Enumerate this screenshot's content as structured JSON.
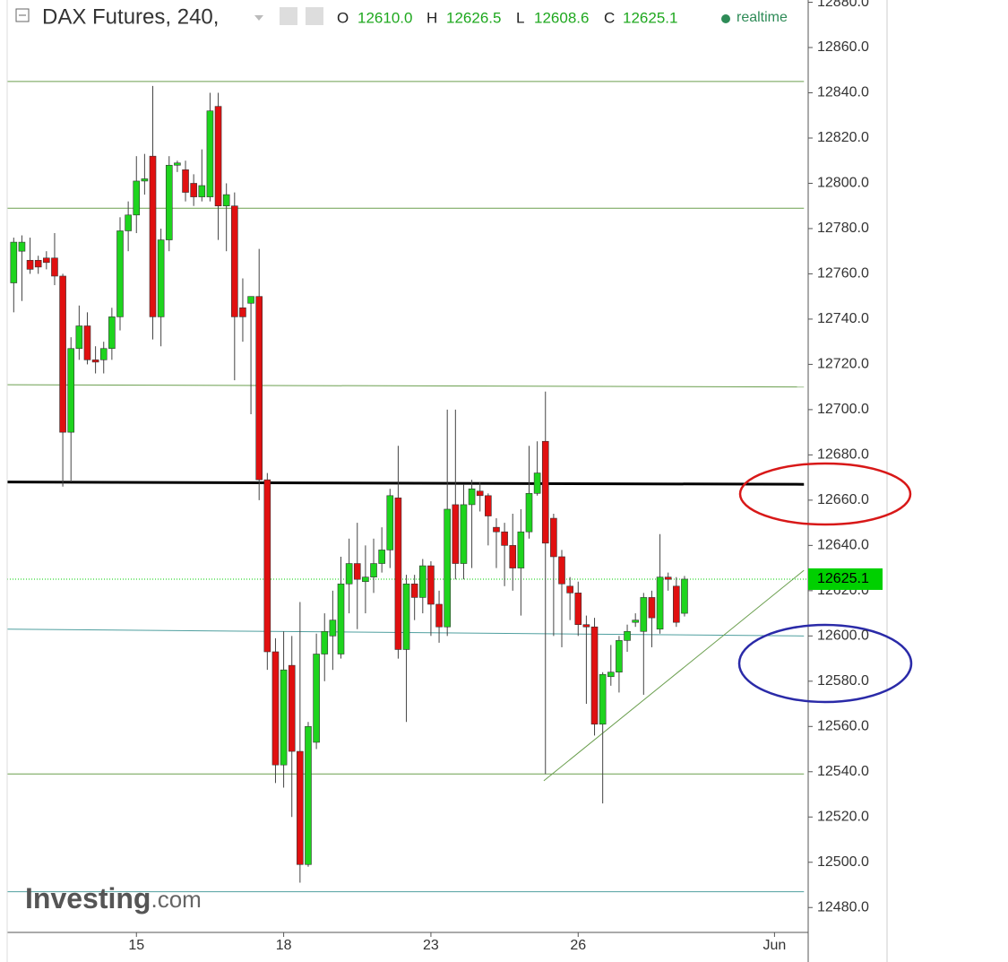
{
  "header": {
    "title": "DAX Futures, 240,",
    "o_label": "O",
    "o": "12610.0",
    "h_label": "H",
    "h": "12626.5",
    "l_label": "L",
    "l": "12608.6",
    "c_label": "C",
    "c": "12625.1",
    "status": "realtime"
  },
  "watermark": {
    "brand": "Investing",
    "suffix": ".com"
  },
  "chart_data": {
    "type": "candlestick",
    "x": [
      0,
      1,
      2,
      3,
      4,
      5,
      6,
      7,
      8,
      9,
      10,
      11,
      12,
      13,
      14,
      15,
      16,
      17,
      18,
      19,
      20,
      21,
      22,
      23,
      24,
      25,
      26,
      27,
      28,
      29,
      30,
      31,
      32,
      33,
      34,
      35,
      36,
      37,
      38,
      39,
      40,
      41,
      42,
      43,
      44,
      45,
      46,
      47,
      48,
      49,
      50,
      51,
      52,
      53,
      54,
      55,
      56,
      57,
      58,
      59,
      60,
      61,
      62,
      63,
      64,
      65,
      66,
      67,
      68,
      69,
      70,
      71,
      72,
      73,
      74,
      75,
      76,
      77,
      78,
      79,
      80,
      81,
      82
    ],
    "open": [
      12756,
      12770,
      12766,
      12766,
      12767,
      12767,
      12759,
      12690,
      12727,
      12737,
      12722,
      12722,
      12727,
      12741,
      12779,
      12786,
      12801,
      12812,
      12741,
      12775,
      12808,
      12806,
      12800,
      12794,
      12794,
      12834,
      12790,
      12790,
      12745,
      12747,
      12750,
      12669,
      12593,
      12543,
      12587,
      12549,
      12499,
      12553,
      12592,
      12600,
      12592,
      12623,
      12632,
      12624,
      12626,
      12632,
      12638,
      12661,
      12594,
      12623,
      12617,
      12631,
      12614,
      12604,
      12658,
      12632,
      12658,
      12664,
      12662,
      12648,
      12646,
      12640,
      12630,
      12646,
      12663,
      12686,
      12652,
      12635,
      12622,
      12619,
      12605,
      12604,
      12561,
      12582,
      12584,
      12598,
      12606,
      12602,
      12617,
      12603,
      12626,
      12622,
      12610
    ],
    "high": [
      12776,
      12777,
      12776,
      12768,
      12770,
      12778,
      12760,
      12732,
      12746,
      12743,
      12728,
      12730,
      12745,
      12785,
      12792,
      12812,
      12813,
      12843,
      12780,
      12812,
      12810,
      12810,
      12804,
      12815,
      12840,
      12840,
      12800,
      12796,
      12758,
      12750,
      12771,
      12672,
      12599,
      12602,
      12600,
      12615,
      12562,
      12601,
      12610,
      12620,
      12635,
      12643,
      12650,
      12640,
      12643,
      12648,
      12665,
      12684,
      12627,
      12627,
      12634,
      12633,
      12620,
      12700,
      12700,
      12667,
      12669,
      12668,
      12663,
      12652,
      12650,
      12654,
      12656,
      12684,
      12686,
      12708,
      12654,
      12638,
      12626,
      12624,
      12609,
      12608,
      12584,
      12596,
      12600,
      12605,
      12610,
      12619,
      12620,
      12645,
      12628,
      12626,
      12626.5
    ],
    "low": [
      12743,
      12748,
      12760,
      12760,
      12762,
      12755,
      12666,
      12668,
      12722,
      12720,
      12716,
      12716,
      12722,
      12735,
      12770,
      12778,
      12795,
      12731,
      12728,
      12770,
      12805,
      12792,
      12790,
      12792,
      12792,
      12775,
      12770,
      12713,
      12730,
      12698,
      12660,
      12585,
      12535,
      12533,
      12520,
      12491,
      12498,
      12550,
      12580,
      12585,
      12590,
      12610,
      12603,
      12610,
      12619,
      12628,
      12630,
      12590,
      12562,
      12607,
      12610,
      12600,
      12597,
      12600,
      12625,
      12625,
      12630,
      12655,
      12640,
      12630,
      12622,
      12620,
      12609,
      12643,
      12662,
      12539,
      12600,
      12595,
      12607,
      12600,
      12570,
      12556,
      12526,
      12578,
      12575,
      12593,
      12604,
      12574,
      12595,
      12601,
      12620,
      12604,
      12608.6
    ],
    "close": [
      12774,
      12774,
      12762,
      12763,
      12765,
      12759,
      12690,
      12727,
      12737,
      12722,
      12721,
      12727,
      12741,
      12779,
      12786,
      12801,
      12802,
      12741,
      12775,
      12808,
      12809,
      12796,
      12794,
      12799,
      12832,
      12790,
      12795,
      12741,
      12741,
      12750,
      12669,
      12593,
      12543,
      12585,
      12549,
      12499,
      12560,
      12592,
      12602,
      12607,
      12623,
      12632,
      12625,
      12626,
      12632,
      12638,
      12662,
      12594,
      12623,
      12617,
      12631,
      12614,
      12604,
      12656,
      12632,
      12658,
      12665,
      12662,
      12653,
      12646,
      12640,
      12630,
      12646,
      12663,
      12672,
      12641,
      12635,
      12623,
      12619,
      12605,
      12604,
      12561,
      12583,
      12584,
      12598,
      12602,
      12607,
      12617,
      12608,
      12626,
      12625,
      12606,
      12625.1
    ],
    "up_color": "#1ed41e",
    "down_color": "#e01010",
    "xlim": [
      -0.8,
      96.9
    ],
    "xticks": [
      {
        "value": 15,
        "label": "15"
      },
      {
        "value": 33,
        "label": "18"
      },
      {
        "value": 51,
        "label": "23"
      },
      {
        "value": 69,
        "label": "26"
      },
      {
        "value": 93,
        "label": "Jun"
      }
    ],
    "ylim": [
      12469,
      12881
    ],
    "yticks": [
      {
        "value": 12480,
        "label": "12480.0"
      },
      {
        "value": 12500,
        "label": "12500.0"
      },
      {
        "value": 12520,
        "label": "12520.0"
      },
      {
        "value": 12540,
        "label": "12540.0"
      },
      {
        "value": 12560,
        "label": "12560.0"
      },
      {
        "value": 12580,
        "label": "12580.0"
      },
      {
        "value": 12600,
        "label": "12600.0"
      },
      {
        "value": 12620,
        "label": "12620.0"
      },
      {
        "value": 12640,
        "label": "12640.0"
      },
      {
        "value": 12660,
        "label": "12660.0"
      },
      {
        "value": 12680,
        "label": "12680.0"
      },
      {
        "value": 12700,
        "label": "12700.0"
      },
      {
        "value": 12720,
        "label": "12720.0"
      },
      {
        "value": 12740,
        "label": "12740.0"
      },
      {
        "value": 12760,
        "label": "12760.0"
      },
      {
        "value": 12780,
        "label": "12780.0"
      },
      {
        "value": 12800,
        "label": "12800.0"
      },
      {
        "value": 12820,
        "label": "12820.0"
      },
      {
        "value": 12840,
        "label": "12840.0"
      },
      {
        "value": 12860,
        "label": "12860.0"
      },
      {
        "value": 12880,
        "label": "12880.0"
      }
    ],
    "last_price": {
      "value": 12625.1,
      "label": "12625.1",
      "color": "#00d000"
    },
    "lines": [
      {
        "x": [
          -0.8,
          96.6
        ],
        "y": [
          12845,
          12845
        ],
        "color": "#6b9f4f",
        "width": 1
      },
      {
        "x": [
          -0.8,
          96.6
        ],
        "y": [
          12789,
          12789
        ],
        "color": "#6b9f4f",
        "width": 1
      },
      {
        "x": [
          -0.8,
          96.6
        ],
        "y": [
          12711,
          12710
        ],
        "color": "#6b9f4f",
        "width": 1
      },
      {
        "x": [
          -0.8,
          96.6
        ],
        "y": [
          12668,
          12667
        ],
        "color": "#000000",
        "width": 3
      },
      {
        "x": [
          -0.8,
          96.6
        ],
        "y": [
          12603,
          12600
        ],
        "color": "#4f9f9f",
        "width": 1
      },
      {
        "x": [
          -0.8,
          96.6
        ],
        "y": [
          12539,
          12539
        ],
        "color": "#6b9f4f",
        "width": 1
      },
      {
        "x": [
          -0.8,
          96.6
        ],
        "y": [
          12487,
          12487
        ],
        "color": "#4f9f9f",
        "width": 1
      },
      {
        "x": [
          64.8,
          96.6
        ],
        "y": [
          12536,
          12629
        ],
        "color": "#6b9f4f",
        "width": 1
      }
    ]
  }
}
